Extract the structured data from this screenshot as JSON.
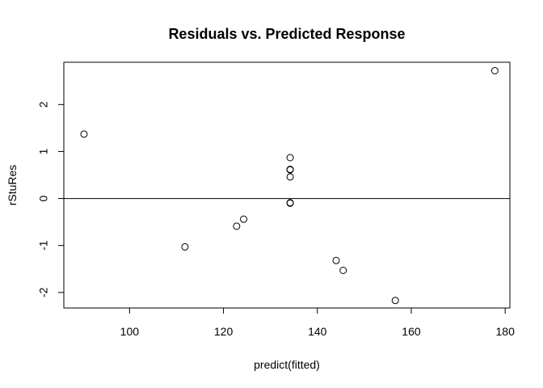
{
  "chart_data": {
    "type": "scatter",
    "title": "Residuals vs. Predicted Response",
    "xlabel": "predict(fitted)",
    "ylabel": "rStuRes",
    "xlim": [
      86.0,
      181.0
    ],
    "ylim": [
      -2.33,
      2.9
    ],
    "x_ticks": [
      100,
      120,
      140,
      160,
      180
    ],
    "y_ticks": [
      -2,
      -1,
      0,
      1,
      2
    ],
    "hline": 0,
    "grid": false,
    "legend": "none",
    "points": [
      {
        "x": 90.3,
        "y": 1.37
      },
      {
        "x": 111.8,
        "y": -1.03
      },
      {
        "x": 122.8,
        "y": -0.59
      },
      {
        "x": 124.3,
        "y": -0.44
      },
      {
        "x": 134.2,
        "y": 0.87
      },
      {
        "x": 134.2,
        "y": 0.62
      },
      {
        "x": 134.2,
        "y": 0.61
      },
      {
        "x": 134.2,
        "y": 0.46
      },
      {
        "x": 134.2,
        "y": -0.09
      },
      {
        "x": 134.2,
        "y": -0.1
      },
      {
        "x": 144.0,
        "y": -1.32
      },
      {
        "x": 145.5,
        "y": -1.53
      },
      {
        "x": 156.6,
        "y": -2.17
      },
      {
        "x": 177.8,
        "y": 2.72
      }
    ]
  }
}
